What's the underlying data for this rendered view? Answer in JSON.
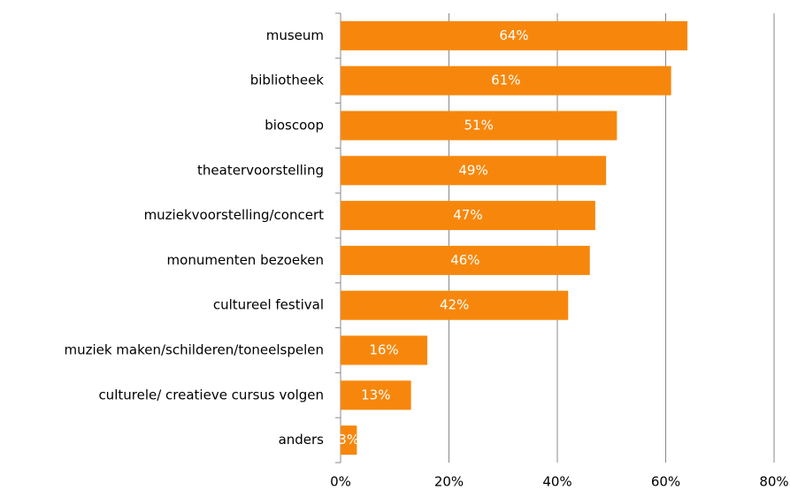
{
  "chart_data": {
    "type": "bar",
    "orientation": "horizontal",
    "categories": [
      "museum",
      "bibliotheek",
      "bioscoop",
      "theatervoorstelling",
      "muziekvoorstelling/concert",
      "monumenten bezoeken",
      "cultureel festival",
      "muziek maken/schilderen/toneelspelen",
      "culturele/ creatieve cursus volgen",
      "anders"
    ],
    "values": [
      64,
      61,
      51,
      49,
      47,
      46,
      42,
      16,
      13,
      3
    ],
    "value_labels": [
      "64%",
      "61%",
      "51%",
      "49%",
      "47%",
      "46%",
      "42%",
      "16%",
      "13%",
      "3%"
    ],
    "color": "#f7870c",
    "xlim": [
      0,
      80
    ],
    "xticks": [
      {
        "value": 0,
        "label": "0%"
      },
      {
        "value": 20,
        "label": "20%"
      },
      {
        "value": 40,
        "label": "40%"
      },
      {
        "value": 60,
        "label": "60%"
      },
      {
        "value": 80,
        "label": "80%"
      }
    ],
    "grid": true
  }
}
